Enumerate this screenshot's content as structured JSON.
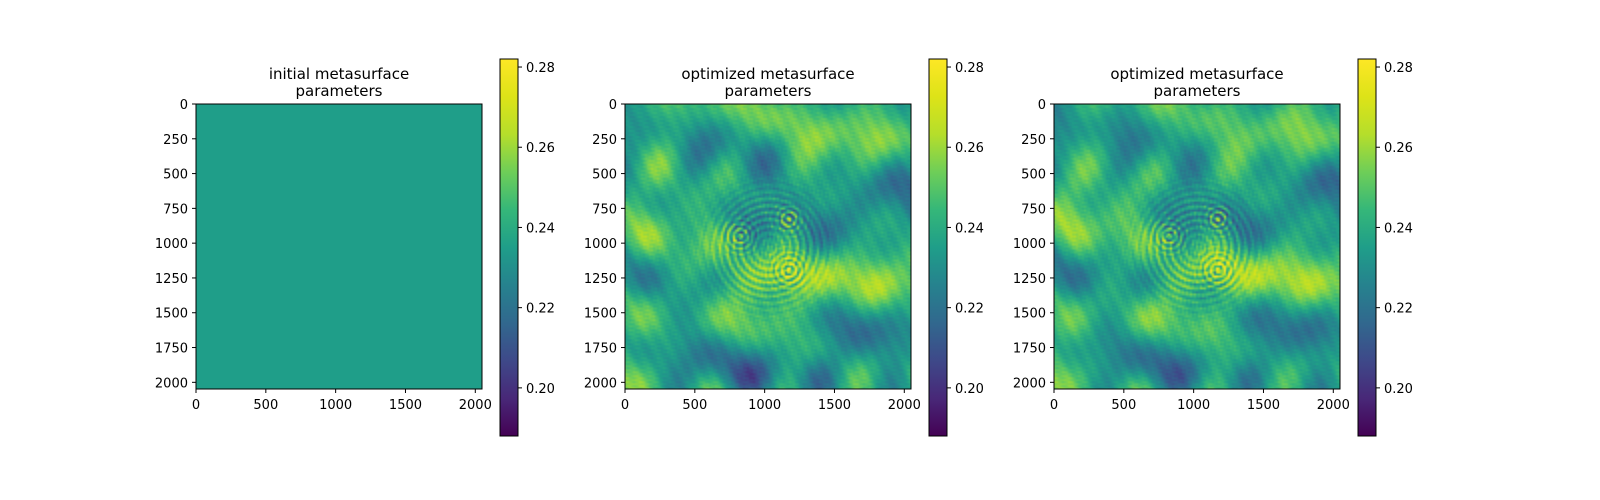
{
  "chart_data": [
    {
      "type": "heatmap",
      "title": [
        "initial metasurface",
        "parameters"
      ],
      "pattern": "uniform",
      "x_ticks": [
        0,
        500,
        1000,
        1500,
        2000
      ],
      "y_ticks": [
        0,
        250,
        500,
        750,
        1000,
        1250,
        1500,
        1750,
        2000
      ],
      "x_range": [
        0,
        2048
      ],
      "y_range": [
        0,
        2048
      ],
      "y_inverted": true,
      "colorbar": {
        "colormap": "viridis",
        "range": [
          0.188,
          0.282
        ],
        "ticks": [
          "0.20",
          "0.22",
          "0.24",
          "0.26",
          "0.28"
        ]
      },
      "uniform_value": 0.235
    },
    {
      "type": "heatmap",
      "title": [
        "optimized metasurface",
        "parameters"
      ],
      "pattern": "optimized",
      "x_ticks": [
        0,
        500,
        1000,
        1500,
        2000
      ],
      "y_ticks": [
        0,
        250,
        500,
        750,
        1000,
        1250,
        1500,
        1750,
        2000
      ],
      "x_range": [
        0,
        2048
      ],
      "y_range": [
        0,
        2048
      ],
      "y_inverted": true,
      "colorbar": {
        "colormap": "viridis",
        "range": [
          0.188,
          0.282
        ],
        "ticks": [
          "0.20",
          "0.22",
          "0.24",
          "0.26",
          "0.28"
        ]
      }
    },
    {
      "type": "heatmap",
      "title": [
        "optimized metasurface",
        "parameters"
      ],
      "pattern": "optimized",
      "x_ticks": [
        0,
        500,
        1000,
        1500,
        2000
      ],
      "y_ticks": [
        0,
        250,
        500,
        750,
        1000,
        1250,
        1500,
        1750,
        2000
      ],
      "x_range": [
        0,
        2048
      ],
      "y_range": [
        0,
        2048
      ],
      "y_inverted": true,
      "colorbar": {
        "colormap": "viridis",
        "range": [
          0.188,
          0.282
        ],
        "ticks": [
          "0.20",
          "0.22",
          "0.24",
          "0.26",
          "0.28"
        ]
      }
    }
  ]
}
